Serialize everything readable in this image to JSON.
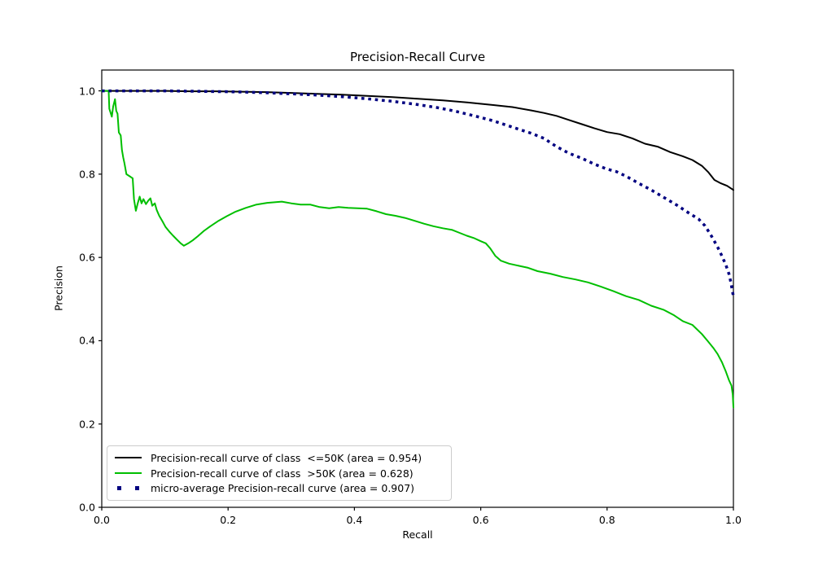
{
  "chart_data": {
    "type": "line",
    "title": "Precision-Recall Curve",
    "xlabel": "Recall",
    "ylabel": "Precision",
    "xlim": [
      0.0,
      1.0
    ],
    "ylim": [
      0.0,
      1.05
    ],
    "grid": false,
    "legend_position": "lower-left",
    "x_tick_labels": [
      "0.0",
      "0.2",
      "0.4",
      "0.6",
      "0.8",
      "1.0"
    ],
    "x_tick_values": [
      0.0,
      0.2,
      0.4,
      0.6,
      0.8,
      1.0
    ],
    "y_tick_labels": [
      "0.0",
      "0.2",
      "0.4",
      "0.6",
      "0.8",
      "1.0"
    ],
    "y_tick_values": [
      0.0,
      0.2,
      0.4,
      0.6,
      0.8,
      1.0
    ],
    "series": [
      {
        "name": "class <=50K",
        "label": "Precision-recall curve of class  <=50K (area = 0.954)",
        "area": 0.954,
        "color": "#000000",
        "style": "solid",
        "line_width": 2,
        "points": [
          [
            0.0,
            1.0
          ],
          [
            0.05,
            1.0
          ],
          [
            0.1,
            1.0
          ],
          [
            0.14,
            0.999
          ],
          [
            0.18,
            0.999
          ],
          [
            0.22,
            0.998
          ],
          [
            0.26,
            0.997
          ],
          [
            0.3,
            0.995
          ],
          [
            0.34,
            0.993
          ],
          [
            0.38,
            0.991
          ],
          [
            0.42,
            0.988
          ],
          [
            0.46,
            0.985
          ],
          [
            0.5,
            0.981
          ],
          [
            0.54,
            0.977
          ],
          [
            0.58,
            0.972
          ],
          [
            0.62,
            0.966
          ],
          [
            0.65,
            0.961
          ],
          [
            0.68,
            0.953
          ],
          [
            0.7,
            0.947
          ],
          [
            0.72,
            0.94
          ],
          [
            0.74,
            0.93
          ],
          [
            0.76,
            0.92
          ],
          [
            0.78,
            0.91
          ],
          [
            0.8,
            0.901
          ],
          [
            0.82,
            0.896
          ],
          [
            0.84,
            0.886
          ],
          [
            0.86,
            0.873
          ],
          [
            0.88,
            0.866
          ],
          [
            0.9,
            0.853
          ],
          [
            0.92,
            0.843
          ],
          [
            0.935,
            0.834
          ],
          [
            0.95,
            0.82
          ],
          [
            0.96,
            0.805
          ],
          [
            0.97,
            0.786
          ],
          [
            0.98,
            0.778
          ],
          [
            0.99,
            0.772
          ],
          [
            1.0,
            0.762
          ]
        ]
      },
      {
        "name": "class >50K",
        "label": "Precision-recall curve of class  >50K (area = 0.628)",
        "area": 0.628,
        "color": "#00bf00",
        "style": "solid",
        "line_width": 2,
        "points": [
          [
            0.0,
            1.0
          ],
          [
            0.011,
            1.0
          ],
          [
            0.012,
            0.957
          ],
          [
            0.016,
            0.938
          ],
          [
            0.018,
            0.962
          ],
          [
            0.021,
            0.98
          ],
          [
            0.023,
            0.952
          ],
          [
            0.025,
            0.945
          ],
          [
            0.027,
            0.9
          ],
          [
            0.03,
            0.893
          ],
          [
            0.032,
            0.858
          ],
          [
            0.034,
            0.84
          ],
          [
            0.036,
            0.826
          ],
          [
            0.039,
            0.8
          ],
          [
            0.042,
            0.797
          ],
          [
            0.046,
            0.793
          ],
          [
            0.049,
            0.79
          ],
          [
            0.051,
            0.74
          ],
          [
            0.054,
            0.712
          ],
          [
            0.057,
            0.73
          ],
          [
            0.06,
            0.746
          ],
          [
            0.063,
            0.73
          ],
          [
            0.066,
            0.74
          ],
          [
            0.07,
            0.728
          ],
          [
            0.074,
            0.737
          ],
          [
            0.077,
            0.742
          ],
          [
            0.08,
            0.724
          ],
          [
            0.084,
            0.73
          ],
          [
            0.087,
            0.714
          ],
          [
            0.091,
            0.7
          ],
          [
            0.096,
            0.687
          ],
          [
            0.101,
            0.673
          ],
          [
            0.107,
            0.662
          ],
          [
            0.113,
            0.652
          ],
          [
            0.119,
            0.643
          ],
          [
            0.125,
            0.634
          ],
          [
            0.13,
            0.628
          ],
          [
            0.137,
            0.634
          ],
          [
            0.144,
            0.641
          ],
          [
            0.152,
            0.651
          ],
          [
            0.162,
            0.664
          ],
          [
            0.172,
            0.675
          ],
          [
            0.185,
            0.688
          ],
          [
            0.198,
            0.699
          ],
          [
            0.212,
            0.71
          ],
          [
            0.228,
            0.719
          ],
          [
            0.245,
            0.727
          ],
          [
            0.262,
            0.731
          ],
          [
            0.285,
            0.734
          ],
          [
            0.3,
            0.73
          ],
          [
            0.315,
            0.727
          ],
          [
            0.33,
            0.727
          ],
          [
            0.345,
            0.721
          ],
          [
            0.36,
            0.718
          ],
          [
            0.375,
            0.721
          ],
          [
            0.39,
            0.719
          ],
          [
            0.405,
            0.718
          ],
          [
            0.42,
            0.717
          ],
          [
            0.435,
            0.711
          ],
          [
            0.45,
            0.704
          ],
          [
            0.465,
            0.7
          ],
          [
            0.48,
            0.695
          ],
          [
            0.495,
            0.688
          ],
          [
            0.51,
            0.681
          ],
          [
            0.525,
            0.675
          ],
          [
            0.54,
            0.67
          ],
          [
            0.555,
            0.666
          ],
          [
            0.565,
            0.66
          ],
          [
            0.578,
            0.652
          ],
          [
            0.59,
            0.646
          ],
          [
            0.6,
            0.639
          ],
          [
            0.608,
            0.634
          ],
          [
            0.615,
            0.622
          ],
          [
            0.623,
            0.604
          ],
          [
            0.632,
            0.592
          ],
          [
            0.645,
            0.585
          ],
          [
            0.66,
            0.58
          ],
          [
            0.675,
            0.575
          ],
          [
            0.69,
            0.567
          ],
          [
            0.71,
            0.561
          ],
          [
            0.73,
            0.553
          ],
          [
            0.75,
            0.547
          ],
          [
            0.77,
            0.54
          ],
          [
            0.79,
            0.53
          ],
          [
            0.81,
            0.519
          ],
          [
            0.83,
            0.507
          ],
          [
            0.85,
            0.498
          ],
          [
            0.87,
            0.484
          ],
          [
            0.89,
            0.474
          ],
          [
            0.905,
            0.462
          ],
          [
            0.92,
            0.447
          ],
          [
            0.935,
            0.438
          ],
          [
            0.95,
            0.416
          ],
          [
            0.96,
            0.398
          ],
          [
            0.968,
            0.383
          ],
          [
            0.975,
            0.368
          ],
          [
            0.982,
            0.348
          ],
          [
            0.988,
            0.326
          ],
          [
            0.993,
            0.305
          ],
          [
            0.997,
            0.292
          ],
          [
            0.999,
            0.27
          ],
          [
            1.0,
            0.24
          ]
        ]
      },
      {
        "name": "micro-average",
        "label": "micro-average Precision-recall curve (area = 0.907)",
        "area": 0.907,
        "color": "#000080",
        "style": "dotted",
        "line_width": 3.5,
        "points": [
          [
            0.0,
            1.0
          ],
          [
            0.05,
            1.0
          ],
          [
            0.1,
            1.0
          ],
          [
            0.15,
            0.999
          ],
          [
            0.2,
            0.998
          ],
          [
            0.25,
            0.996
          ],
          [
            0.3,
            0.993
          ],
          [
            0.34,
            0.99
          ],
          [
            0.38,
            0.986
          ],
          [
            0.42,
            0.981
          ],
          [
            0.46,
            0.975
          ],
          [
            0.5,
            0.967
          ],
          [
            0.53,
            0.96
          ],
          [
            0.56,
            0.951
          ],
          [
            0.59,
            0.94
          ],
          [
            0.62,
            0.928
          ],
          [
            0.65,
            0.913
          ],
          [
            0.68,
            0.898
          ],
          [
            0.7,
            0.886
          ],
          [
            0.72,
            0.866
          ],
          [
            0.74,
            0.85
          ],
          [
            0.76,
            0.838
          ],
          [
            0.78,
            0.824
          ],
          [
            0.8,
            0.812
          ],
          [
            0.815,
            0.806
          ],
          [
            0.83,
            0.795
          ],
          [
            0.85,
            0.778
          ],
          [
            0.87,
            0.762
          ],
          [
            0.89,
            0.744
          ],
          [
            0.91,
            0.726
          ],
          [
            0.93,
            0.706
          ],
          [
            0.945,
            0.692
          ],
          [
            0.955,
            0.676
          ],
          [
            0.965,
            0.652
          ],
          [
            0.975,
            0.625
          ],
          [
            0.982,
            0.603
          ],
          [
            0.988,
            0.582
          ],
          [
            0.993,
            0.56
          ],
          [
            0.996,
            0.54
          ],
          [
            1.0,
            0.506
          ]
        ]
      }
    ]
  }
}
